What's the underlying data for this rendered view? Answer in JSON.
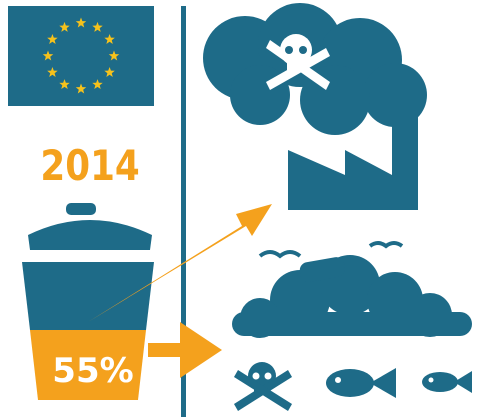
{
  "year": "2014",
  "waste_share": "55%"
}
